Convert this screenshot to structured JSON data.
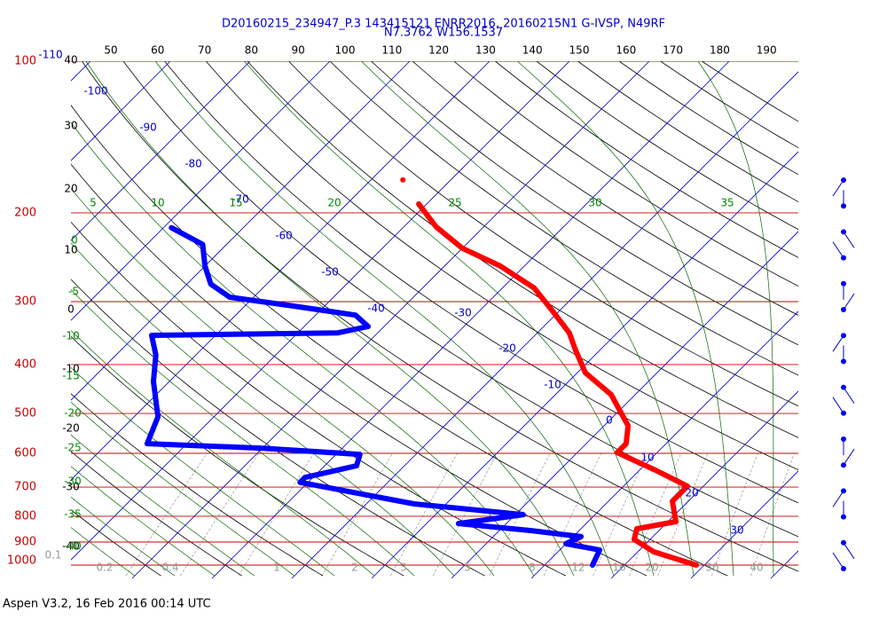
{
  "chart_data": {
    "type": "skewt",
    "title": "D20160215_234947_P.3 143415121 ENRR2016, 20160215N1 G-IVSP, N49RF",
    "subtitle": "N7.3762 W156.1537",
    "caption": "Aspen V3.2, 16 Feb 2016  00:14 UTC",
    "log_y": true,
    "ylim": [
      100,
      1000
    ],
    "yticks": [
      100,
      200,
      300,
      400,
      500,
      600,
      700,
      800,
      900,
      1000
    ],
    "pressure_color": "#cc0000",
    "isotherm_color": "#0000cc",
    "top_labels": [
      50,
      60,
      70,
      80,
      90,
      100,
      110,
      120,
      130,
      140,
      150,
      160,
      170,
      180,
      190
    ],
    "isotherm_labels": [
      -110,
      -100,
      -90,
      -80,
      -70,
      -60,
      -50,
      -40,
      -30,
      -20,
      -10,
      0,
      10,
      20,
      30
    ],
    "dry_adiabat_labels": [
      40,
      30,
      20,
      10,
      0,
      -10,
      -20,
      -30,
      -40
    ],
    "moist_adiabat_labels": [
      5,
      10,
      15,
      20,
      25,
      30,
      35,
      0,
      -5,
      -10,
      -15,
      -20,
      -25,
      -30,
      -35,
      -40
    ],
    "mixing_ratio_labels": [
      0.1,
      0.2,
      0.4,
      1,
      2,
      3,
      5,
      8,
      12,
      16,
      20,
      30,
      40
    ],
    "series": [
      {
        "color": "#ff0000",
        "pressure": [
          172,
          null,
          192,
          213,
          235,
          255,
          282,
          312,
          346,
          375,
          415,
          459,
          529,
          574,
          598,
          648,
          697,
          747,
          820,
          847,
          889,
          941,
          1000
        ],
        "values": [
          -56,
          null,
          -51,
          -46,
          -40,
          -33,
          -26,
          -21,
          -16,
          -13,
          -9,
          -3,
          3,
          5,
          5,
          12,
          18,
          18,
          21,
          17,
          18,
          22,
          29
        ]
      },
      {
        "color": "#0000ff",
        "pressure": [
          214,
          231,
          255,
          277,
          294,
          306,
          319,
          336,
          346,
          350,
          383,
          432,
          508,
          574,
          586,
          603,
          635,
          670,
          685,
          756,
          794,
          827,
          854,
          878,
          907,
          933,
          1000
        ],
        "values": [
          -79,
          -73,
          -70,
          -67,
          -63,
          -54,
          -45,
          -42,
          -45,
          -68,
          -65,
          -62,
          -57,
          -55,
          -40,
          -27,
          -26,
          -31,
          -31,
          -14,
          1,
          -6,
          4,
          11,
          10,
          15,
          16
        ]
      }
    ]
  }
}
